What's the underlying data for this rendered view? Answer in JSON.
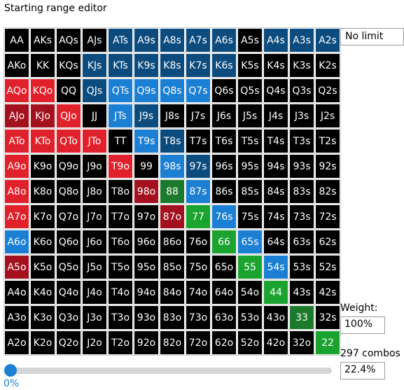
{
  "title": "Starting range editor",
  "limit_select": "No limit",
  "weight_label": "Weight:",
  "weight_value": "100%",
  "combos_label": "297 combos",
  "combos_pct": "22.4%",
  "slider_label": "0%",
  "slider_value_fraction": 0,
  "colors": {
    "k": "#000000",
    "b": "#0c4b7d",
    "l": "#1b7fd3",
    "r": "#e0202a",
    "d": "#a3111f",
    "g": "#1b7a2c",
    "G": "#1aa32e",
    "accent": "#1b7fd3"
  },
  "grid": [
    [
      "AA",
      "AKs",
      "AQs",
      "AJs",
      "ATs",
      "A9s",
      "A8s",
      "A7s",
      "A6s",
      "A5s",
      "A4s",
      "A3s",
      "A2s"
    ],
    [
      "AKo",
      "KK",
      "KQs",
      "KJs",
      "KTs",
      "K9s",
      "K8s",
      "K7s",
      "K6s",
      "K5s",
      "K4s",
      "K3s",
      "K2s"
    ],
    [
      "AQo",
      "KQo",
      "QQ",
      "QJs",
      "QTs",
      "Q9s",
      "Q8s",
      "Q7s",
      "Q6s",
      "Q5s",
      "Q4s",
      "Q3s",
      "Q2s"
    ],
    [
      "AJo",
      "KJo",
      "QJo",
      "JJ",
      "JTs",
      "J9s",
      "J8s",
      "J7s",
      "J6s",
      "J5s",
      "J4s",
      "J3s",
      "J2s"
    ],
    [
      "ATo",
      "KTo",
      "QTo",
      "JTo",
      "TT",
      "T9s",
      "T8s",
      "T7s",
      "T6s",
      "T5s",
      "T4s",
      "T3s",
      "T2s"
    ],
    [
      "A9o",
      "K9o",
      "Q9o",
      "J9o",
      "T9o",
      "99",
      "98s",
      "97s",
      "96s",
      "95s",
      "94s",
      "93s",
      "92s"
    ],
    [
      "A8o",
      "K8o",
      "Q8o",
      "J8o",
      "T8o",
      "98o",
      "88",
      "87s",
      "86s",
      "85s",
      "84s",
      "83s",
      "82s"
    ],
    [
      "A7o",
      "K7o",
      "Q7o",
      "J7o",
      "T7o",
      "97o",
      "87o",
      "77",
      "76s",
      "75s",
      "74s",
      "73s",
      "72s"
    ],
    [
      "A6o",
      "K6o",
      "Q6o",
      "J6o",
      "T6o",
      "96o",
      "86o",
      "76o",
      "66",
      "65s",
      "64s",
      "63s",
      "62s"
    ],
    [
      "A5o",
      "K5o",
      "Q5o",
      "J5o",
      "T5o",
      "95o",
      "85o",
      "75o",
      "65o",
      "55",
      "54s",
      "53s",
      "52s"
    ],
    [
      "A4o",
      "K4o",
      "Q4o",
      "J4o",
      "T4o",
      "94o",
      "84o",
      "74o",
      "64o",
      "54o",
      "44",
      "43s",
      "42s"
    ],
    [
      "A3o",
      "K3o",
      "Q3o",
      "J3o",
      "T3o",
      "93o",
      "83o",
      "73o",
      "63o",
      "53o",
      "43o",
      "33",
      "32s"
    ],
    [
      "A2o",
      "K2o",
      "Q2o",
      "J2o",
      "T2o",
      "92o",
      "82o",
      "72o",
      "62o",
      "52o",
      "42o",
      "32o",
      "22"
    ]
  ],
  "grid_colors": [
    "kkkkbbbbbkbbb",
    "kkkbbbbbbkkkk",
    "rrkbllllkkkkk",
    "ddrklbkkkkkkk",
    "rrrrklbkkkkkk",
    "rkkkrklbkkkkk",
    "rkkkkdglkkkkk",
    "rkkkkkdGlkkkk",
    "lkkkkkkkGlkkk",
    "dkkkkkkkkGlkk",
    "kkkkkkkkkkGkk",
    "kkkkkkkkkkkgk",
    "kkkkkkkkkkkkG"
  ]
}
